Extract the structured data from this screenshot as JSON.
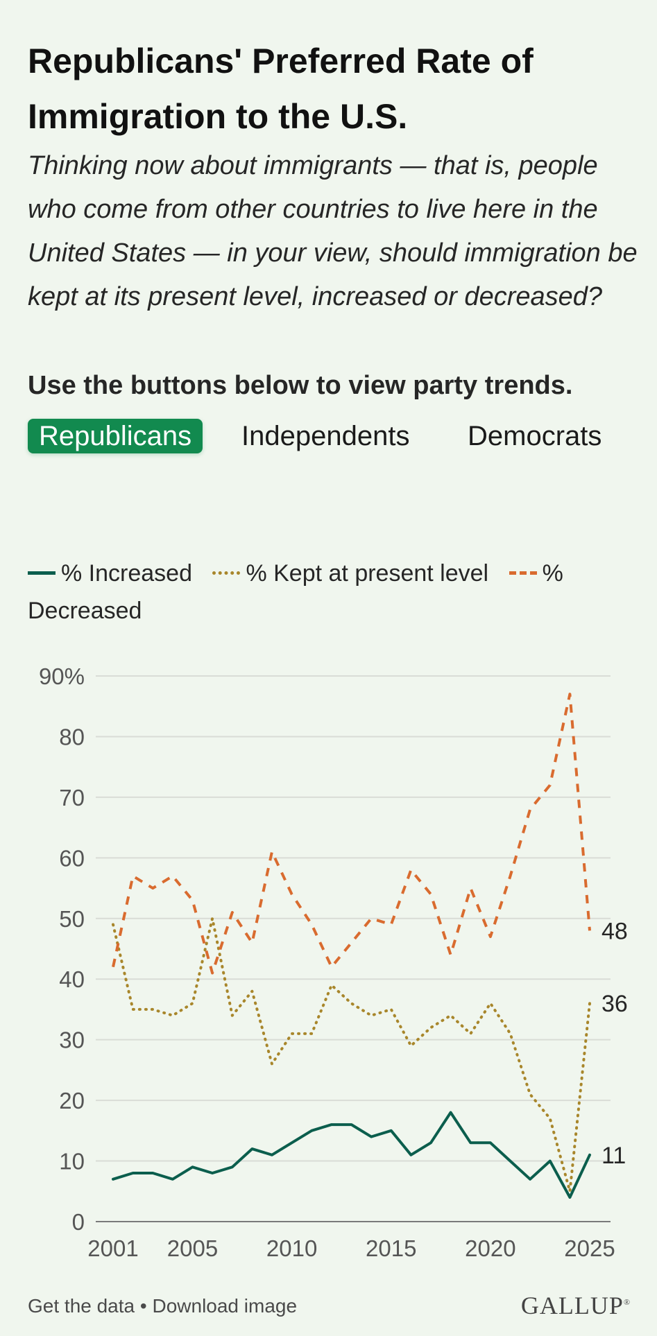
{
  "title": "Republicans' Preferred Rate of Immigration to the U.S.",
  "subtitle": "Thinking now about immigrants — that is, people who come from other countries to live here in the United States — in your view, should immigration be kept at its present level, increased or decreased?",
  "instruction": "Use the buttons below to view party trends.",
  "tabs": [
    {
      "label": "Republicans",
      "active": true
    },
    {
      "label": "Independents",
      "active": false
    },
    {
      "label": "Democrats",
      "active": false
    }
  ],
  "legend": {
    "increased": "% Increased",
    "kept": "% Kept at present level",
    "decreased": "% Decreased"
  },
  "colors": {
    "increased": "#0b5e4d",
    "kept": "#a8862b",
    "decreased": "#d96b2f",
    "grid": "#d9dcd6",
    "accent": "#128a4f"
  },
  "footer": {
    "get_data": "Get the data",
    "separator": "•",
    "download": "Download image",
    "logo": "GALLUP"
  },
  "chart_data": {
    "type": "line",
    "x": [
      2001,
      2002,
      2003,
      2004,
      2005,
      2006,
      2007,
      2008,
      2009,
      2010,
      2011,
      2012,
      2013,
      2014,
      2015,
      2016,
      2017,
      2018,
      2019,
      2020,
      2021,
      2022,
      2023,
      2024,
      2025
    ],
    "series": [
      {
        "name": "% Increased",
        "style": "solid",
        "values": [
          7,
          8,
          8,
          7,
          9,
          8,
          9,
          12,
          11,
          13,
          15,
          16,
          16,
          14,
          15,
          11,
          13,
          18,
          13,
          13,
          10,
          7,
          10,
          4,
          11
        ]
      },
      {
        "name": "% Kept at present level",
        "style": "dotted",
        "values": [
          49,
          35,
          35,
          34,
          36,
          50,
          34,
          38,
          26,
          31,
          31,
          39,
          36,
          34,
          35,
          29,
          32,
          34,
          31,
          36,
          31,
          21,
          17,
          5,
          36
        ]
      },
      {
        "name": "% Decreased",
        "style": "dashed",
        "values": [
          42,
          57,
          55,
          57,
          53,
          41,
          51,
          46,
          61,
          54,
          49,
          42,
          46,
          50,
          49,
          58,
          54,
          44,
          55,
          47,
          57,
          68,
          72,
          87,
          48
        ]
      }
    ],
    "end_labels": [
      "11",
      "36",
      "48"
    ],
    "y_ticks": [
      "0",
      "10",
      "20",
      "30",
      "40",
      "50",
      "60",
      "70",
      "80",
      "90%"
    ],
    "y_tick_values": [
      0,
      10,
      20,
      30,
      40,
      50,
      60,
      70,
      80,
      90
    ],
    "x_ticks": [
      "2001",
      "2005",
      "2010",
      "2015",
      "2020",
      "2025"
    ],
    "x_tick_values": [
      2001,
      2005,
      2010,
      2015,
      2020,
      2025
    ],
    "ylim": [
      0,
      90
    ],
    "xlim": [
      2001,
      2025
    ],
    "grid": true,
    "legend_position": "top-left"
  }
}
